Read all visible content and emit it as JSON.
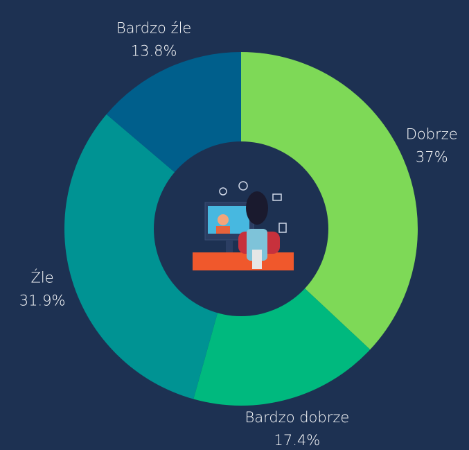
{
  "chart_data": {
    "type": "donut",
    "categories": [
      "Dobrze",
      "Bardzo dobrze",
      "Źle",
      "Bardzo źle"
    ],
    "values": [
      37,
      17.4,
      31.9,
      13.8
    ],
    "value_labels": [
      "37%",
      "17.4%",
      "31.9%",
      "13.8%"
    ],
    "colors": [
      "#7ed957",
      "#00b97e",
      "#009393",
      "#005f8c"
    ]
  }
}
